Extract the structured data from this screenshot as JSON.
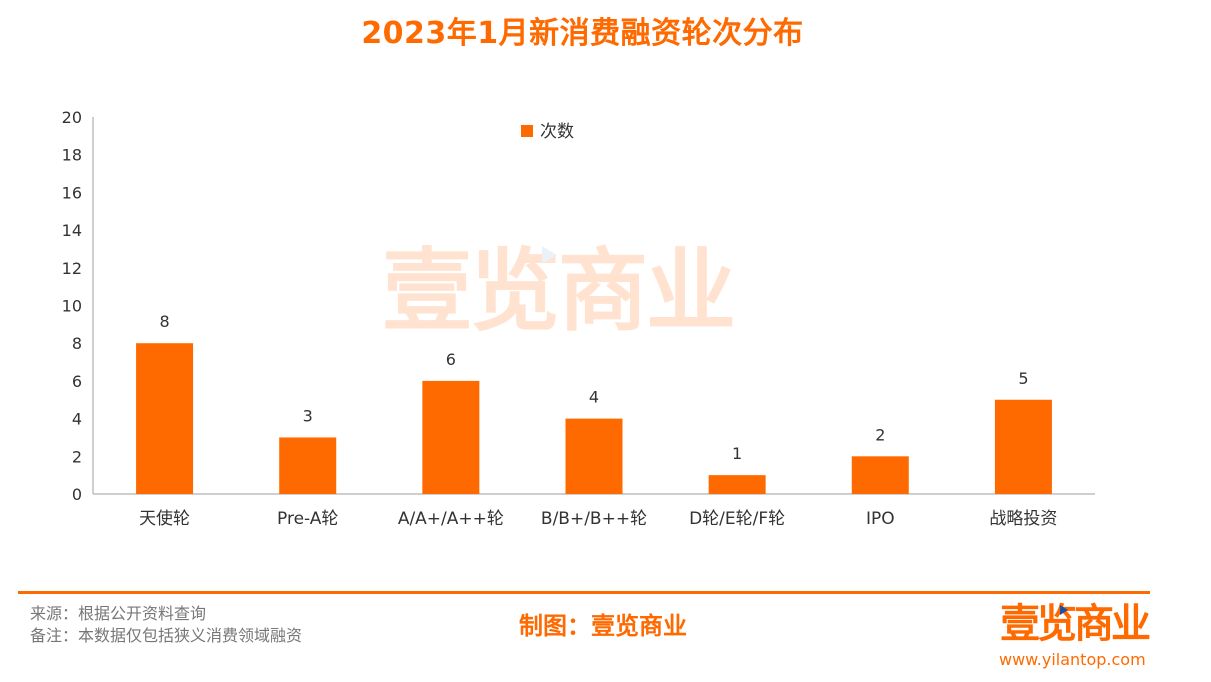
{
  "title": "2023年1月新消费融资轮次分布",
  "chart_data": {
    "type": "bar",
    "title": "2023年1月新消费融资轮次分布",
    "categories": [
      "天使轮",
      "Pre-A轮",
      "A/A+/A++轮",
      "B/B+/B++轮",
      "D轮/E轮/F轮",
      "IPO",
      "战略投资"
    ],
    "series": [
      {
        "name": "次数",
        "values": [
          8,
          3,
          6,
          4,
          1,
          2,
          5
        ]
      }
    ],
    "ylim": [
      0,
      20
    ],
    "yticks": [
      0,
      2,
      4,
      6,
      8,
      10,
      12,
      14,
      16,
      18,
      20
    ],
    "xlabel": "",
    "ylabel": "",
    "grid": false,
    "legend_position": "top-center",
    "bar_color": "#ff6a00",
    "data_labels": true
  },
  "watermark": "壹览商业",
  "footer": {
    "source": "来源：根据公开资料查询",
    "note": "备注：本数据仅包括狭义消费领域融资",
    "maker": "制图：壹览商业",
    "brand": "壹览商业",
    "url": "www.yilantop.com"
  },
  "colors": {
    "accent": "#ff6a00",
    "axis_text": "#333333",
    "footer_text": "#777777"
  }
}
